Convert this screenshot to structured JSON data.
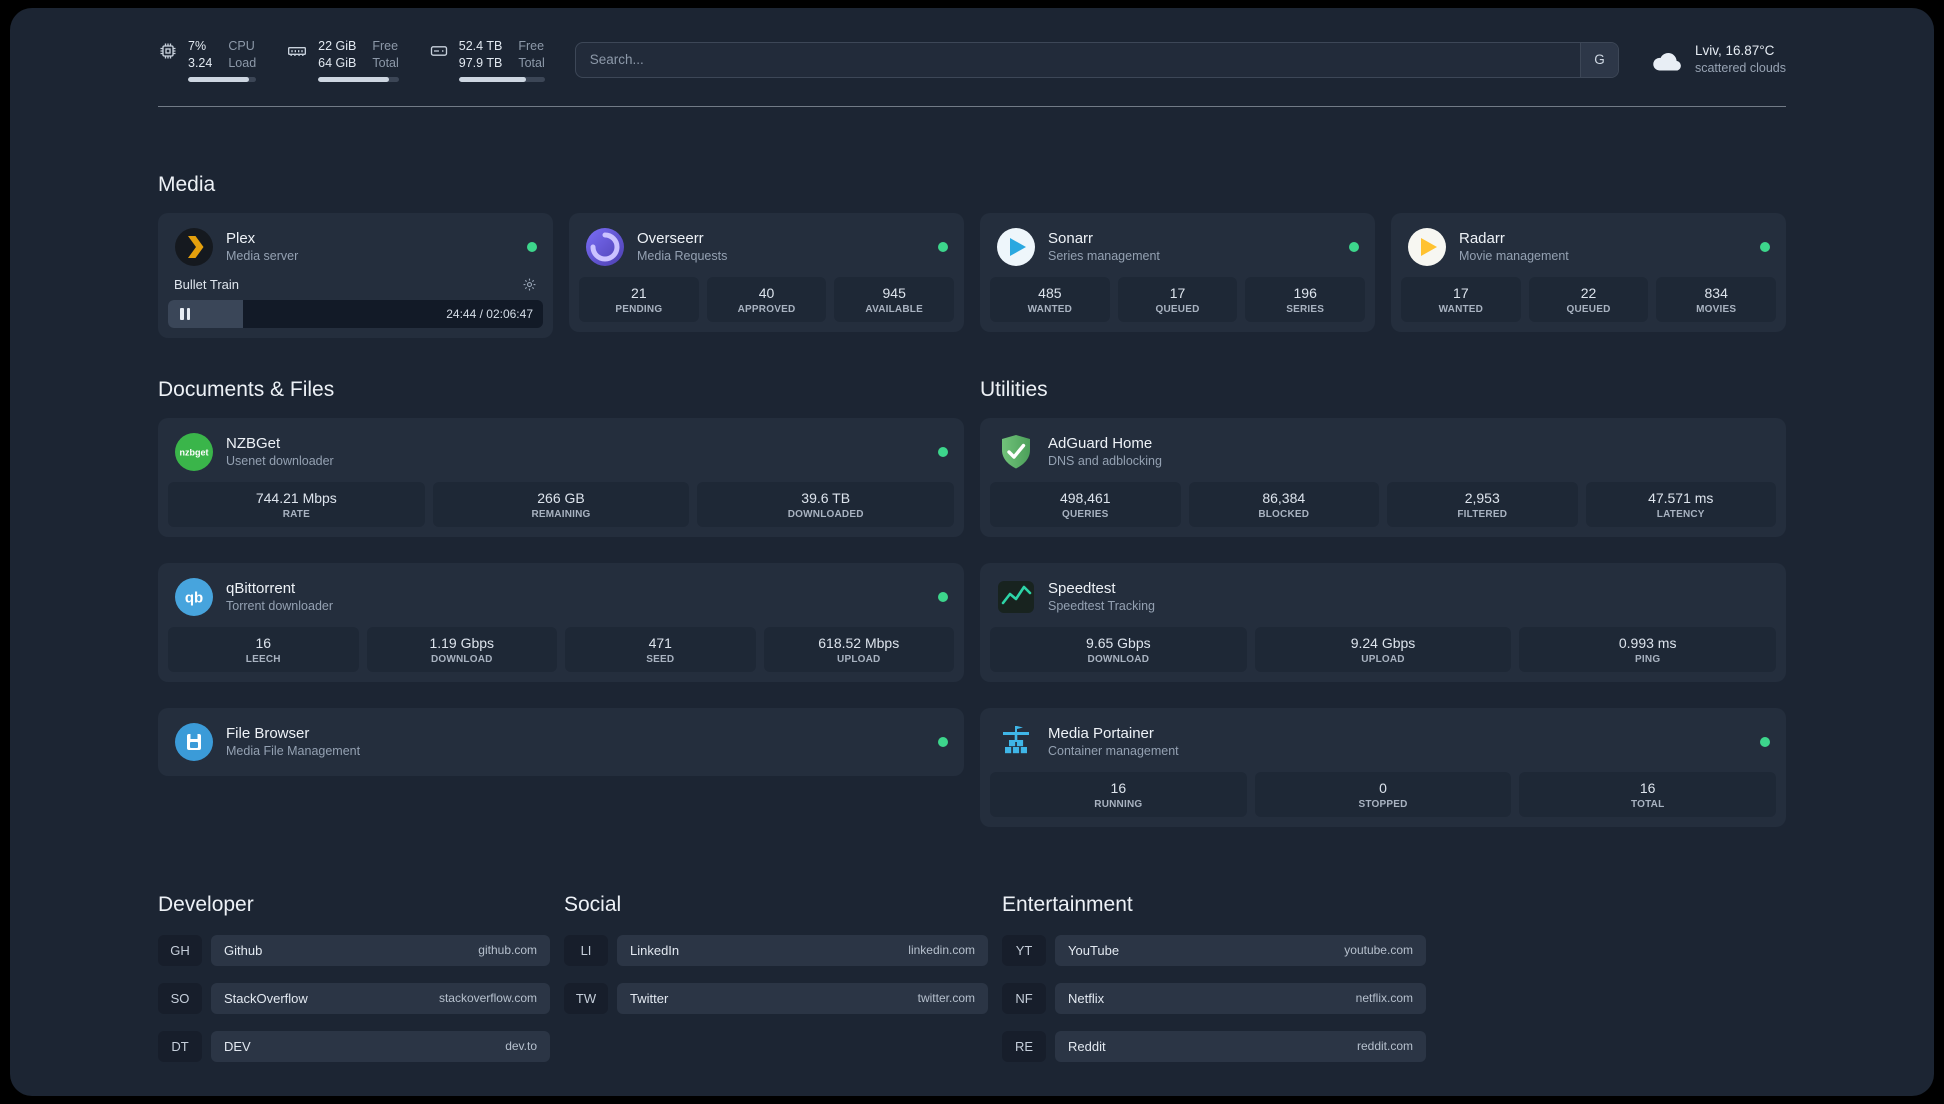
{
  "theme": {
    "background": "#1c2533",
    "card_background": "#242e3d",
    "stat_box_background": "#1e2836",
    "status_online_green": "#3dd68c",
    "text_primary": "#edf1f6",
    "text_secondary": "#94a1b2"
  },
  "topbar": {
    "cpu": {
      "icon": "cpu-icon",
      "value1": "7%",
      "label1": "CPU",
      "value2": "3.24",
      "label2": "Load",
      "bar_percent": 90
    },
    "memory": {
      "icon": "memory-icon",
      "value1": "22 GiB",
      "label1": "Free",
      "value2": "64 GiB",
      "label2": "Total",
      "bar_percent": 88
    },
    "disk": {
      "icon": "disk-icon",
      "value1": "52.4 TB",
      "label1": "Free",
      "value2": "97.9 TB",
      "label2": "Total",
      "bar_percent": 78
    },
    "search": {
      "placeholder": "Search...",
      "button_label": "G"
    },
    "weather": {
      "icon": "cloud-icon",
      "location": "Lviv, 16.87°C",
      "condition": "scattered clouds"
    }
  },
  "sections": {
    "media": {
      "title": "Media",
      "plex": {
        "icon": "plex-icon",
        "name": "Plex",
        "subtitle": "Media server",
        "status": "online",
        "now_playing": {
          "track": "Bullet Train",
          "time": "24:44 / 02:06:47",
          "progress_percent": 20
        }
      },
      "overseerr": {
        "icon": "overseerr-icon",
        "name": "Overseerr",
        "subtitle": "Media Requests",
        "status": "online",
        "stats": [
          {
            "value": "21",
            "label": "PENDING"
          },
          {
            "value": "40",
            "label": "APPROVED"
          },
          {
            "value": "945",
            "label": "AVAILABLE"
          }
        ]
      },
      "sonarr": {
        "icon": "sonarr-icon",
        "name": "Sonarr",
        "subtitle": "Series management",
        "status": "online",
        "stats": [
          {
            "value": "485",
            "label": "WANTED"
          },
          {
            "value": "17",
            "label": "QUEUED"
          },
          {
            "value": "196",
            "label": "SERIES"
          }
        ]
      },
      "radarr": {
        "icon": "radarr-icon",
        "name": "Radarr",
        "subtitle": "Movie management",
        "status": "online",
        "stats": [
          {
            "value": "17",
            "label": "WANTED"
          },
          {
            "value": "22",
            "label": "QUEUED"
          },
          {
            "value": "834",
            "label": "MOVIES"
          }
        ]
      }
    },
    "documents": {
      "title": "Documents & Files",
      "nzbget": {
        "icon": "nzbget-icon",
        "name": "NZBGet",
        "subtitle": "Usenet downloader",
        "status": "online",
        "stats": [
          {
            "value": "744.21 Mbps",
            "label": "RATE"
          },
          {
            "value": "266 GB",
            "label": "REMAINING"
          },
          {
            "value": "39.6 TB",
            "label": "DOWNLOADED"
          }
        ]
      },
      "qbittorrent": {
        "icon": "qbittorrent-icon",
        "name": "qBittorrent",
        "subtitle": "Torrent downloader",
        "status": "online",
        "stats": [
          {
            "value": "16",
            "label": "LEECH"
          },
          {
            "value": "1.19 Gbps",
            "label": "DOWNLOAD"
          },
          {
            "value": "471",
            "label": "SEED"
          },
          {
            "value": "618.52 Mbps",
            "label": "UPLOAD"
          }
        ]
      },
      "filebrowser": {
        "icon": "filebrowser-icon",
        "name": "File Browser",
        "subtitle": "Media File Management",
        "status": "online"
      }
    },
    "utilities": {
      "title": "Utilities",
      "adguard": {
        "icon": "adguard-icon",
        "name": "AdGuard Home",
        "subtitle": "DNS and adblocking",
        "stats": [
          {
            "value": "498,461",
            "label": "QUERIES"
          },
          {
            "value": "86,384",
            "label": "BLOCKED"
          },
          {
            "value": "2,953",
            "label": "FILTERED"
          },
          {
            "value": "47.571 ms",
            "label": "LATENCY"
          }
        ]
      },
      "speedtest": {
        "icon": "speedtest-icon",
        "name": "Speedtest",
        "subtitle": "Speedtest Tracking",
        "stats": [
          {
            "value": "9.65 Gbps",
            "label": "DOWNLOAD"
          },
          {
            "value": "9.24 Gbps",
            "label": "UPLOAD"
          },
          {
            "value": "0.993 ms",
            "label": "PING"
          }
        ]
      },
      "portainer": {
        "icon": "portainer-icon",
        "name": "Media Portainer",
        "subtitle": "Container management",
        "status": "online",
        "stats": [
          {
            "value": "16",
            "label": "RUNNING"
          },
          {
            "value": "0",
            "label": "STOPPED"
          },
          {
            "value": "16",
            "label": "TOTAL"
          }
        ]
      }
    }
  },
  "bookmarks": {
    "developer": {
      "title": "Developer",
      "items": [
        {
          "abbr": "GH",
          "name": "Github",
          "url": "github.com"
        },
        {
          "abbr": "SO",
          "name": "StackOverflow",
          "url": "stackoverflow.com"
        },
        {
          "abbr": "DT",
          "name": "DEV",
          "url": "dev.to"
        }
      ]
    },
    "social": {
      "title": "Social",
      "items": [
        {
          "abbr": "LI",
          "name": "LinkedIn",
          "url": "linkedin.com"
        },
        {
          "abbr": "TW",
          "name": "Twitter",
          "url": "twitter.com"
        }
      ]
    },
    "entertainment": {
      "title": "Entertainment",
      "items": [
        {
          "abbr": "YT",
          "name": "YouTube",
          "url": "youtube.com"
        },
        {
          "abbr": "NF",
          "name": "Netflix",
          "url": "netflix.com"
        },
        {
          "abbr": "RE",
          "name": "Reddit",
          "url": "reddit.com"
        }
      ]
    }
  }
}
